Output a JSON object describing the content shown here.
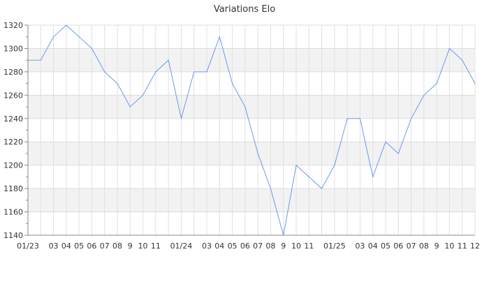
{
  "chart_data": {
    "type": "line",
    "title": "Variations Elo",
    "xlabel": "",
    "ylabel": "",
    "x_tick_labels": [
      "01/23",
      "",
      "03",
      "04",
      "05",
      "06",
      "07",
      "08",
      "9",
      "10",
      "11",
      "",
      "01/24",
      "",
      "03",
      "04",
      "05",
      "06",
      "07",
      "08",
      "9",
      "10",
      "11",
      "",
      "01/25",
      "",
      "03",
      "04",
      "05",
      "06",
      "07",
      "08",
      "9",
      "10",
      "11",
      "12"
    ],
    "y_ticks": [
      1140,
      1160,
      1180,
      1200,
      1220,
      1240,
      1260,
      1280,
      1300,
      1320
    ],
    "ylim": [
      1140,
      1320
    ],
    "grid": true,
    "banded_background": true,
    "series": [
      {
        "color": "#5b8ff0",
        "values": [
          1290,
          1290,
          1310,
          1320,
          1310,
          1300,
          1280,
          1270,
          1250,
          1260,
          1280,
          1290,
          1240,
          1280,
          1280,
          1310,
          1270,
          1250,
          1210,
          1180,
          1140,
          1200,
          1190,
          1180,
          1200,
          1240,
          1240,
          1190,
          1220,
          1210,
          1240,
          1260,
          1270,
          1300,
          1290,
          1270
        ]
      }
    ]
  }
}
